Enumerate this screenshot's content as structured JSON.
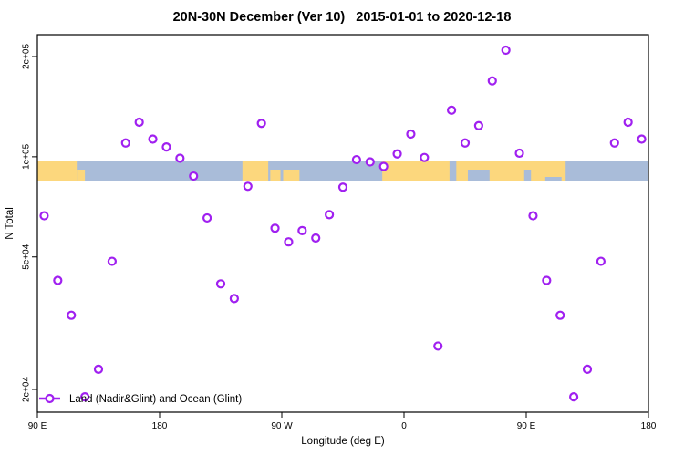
{
  "title": "20N-30N December (Ver 10)   2015-01-01 to 2020-12-18",
  "colors": {
    "accent_purple": "#A020F0",
    "land": "#FCD77D",
    "ocean": "#A9BCD9",
    "axis": "#000000",
    "background": "#FFFFFF",
    "marker_fill": "#FFFFFF"
  },
  "legend": {
    "label": "Land (Nadir&Glint) and Ocean (Glint)"
  },
  "chart_data": {
    "type": "scatter",
    "title": "20N-30N December (Ver 10)   2015-01-01 to 2020-12-18",
    "xlabel": "Longitude (deg E)",
    "ylabel": "N Total",
    "x_axis": {
      "range_deg_east": [
        90,
        540
      ],
      "ticks": [
        {
          "deg": 90,
          "label": "90 E"
        },
        {
          "deg": 180,
          "label": "180"
        },
        {
          "deg": 270,
          "label": "90 W"
        },
        {
          "deg": 360,
          "label": "0"
        },
        {
          "deg": 450,
          "label": "90 E"
        },
        {
          "deg": 540,
          "label": "180"
        }
      ]
    },
    "y_axis": {
      "scale": "log",
      "ticks": [
        {
          "value": 20000,
          "label": "2e+04"
        },
        {
          "value": 50000,
          "label": "5e+04"
        },
        {
          "value": 100000,
          "label": "1e+05"
        },
        {
          "value": 200000,
          "label": "2e+05"
        }
      ]
    },
    "series": [
      {
        "name": "Land (Nadir&Glint) and Ocean (Glint)",
        "marker": "open-circle",
        "color": "#A020F0",
        "lon": [
          95,
          105,
          115,
          125,
          135,
          145,
          155,
          165,
          175,
          185,
          195,
          205,
          215,
          225,
          235,
          245,
          255,
          265,
          275,
          285,
          295,
          305,
          315,
          325,
          335,
          345,
          355,
          365,
          375,
          385,
          395,
          405,
          415,
          425,
          435,
          445,
          455,
          465,
          475,
          485,
          495,
          505,
          515,
          525,
          535
        ],
        "values": [
          66500,
          42500,
          33400,
          19000,
          23000,
          48500,
          110000,
          127000,
          113000,
          107000,
          99000,
          87500,
          65500,
          41500,
          37500,
          81500,
          126000,
          61000,
          55500,
          60000,
          57000,
          67000,
          81000,
          98000,
          96500,
          93500,
          102000,
          117000,
          99500,
          27000,
          138000,
          110000,
          124000,
          169000,
          209000,
          102500,
          66500,
          42500,
          33400,
          19000,
          23000,
          48500,
          110000,
          127000,
          113000
        ]
      }
    ]
  },
  "map_band": {
    "land_segments": [
      {
        "from_deg": 90,
        "to_deg": 119,
        "extent": "full"
      },
      {
        "from_deg": 119,
        "to_deg": 125,
        "extent": "bottom"
      },
      {
        "from_deg": 241,
        "to_deg": 260,
        "extent": "full"
      },
      {
        "from_deg": 261.5,
        "to_deg": 269,
        "extent": "bottom"
      },
      {
        "from_deg": 271,
        "to_deg": 283,
        "extent": "bottom"
      },
      {
        "from_deg": 344,
        "to_deg": 479,
        "extent": "full"
      }
    ],
    "ocean_cutouts": [
      {
        "from_deg": 393.5,
        "to_deg": 398.5,
        "extent": "full"
      },
      {
        "from_deg": 407,
        "to_deg": 423,
        "extent": "bottom"
      },
      {
        "from_deg": 448.5,
        "to_deg": 453.5,
        "extent": "bottom"
      },
      {
        "from_deg": 464,
        "to_deg": 476,
        "extent": "bottomthin"
      }
    ]
  }
}
